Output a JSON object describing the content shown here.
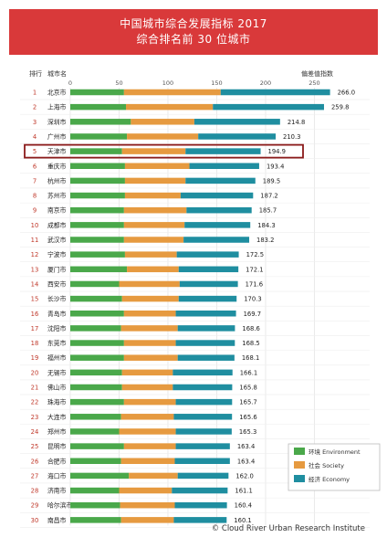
{
  "header": {
    "title": "中国城市综合发展指标 2017",
    "subtitle": "综合排名前 30 位城市"
  },
  "columns": {
    "rank": "排行",
    "city": "城市名",
    "score": "偏差值指数"
  },
  "copyright": "© Cloud River Urban Research Institute",
  "colors": {
    "environment": "#4aa84a",
    "society": "#e69a40",
    "economy": "#1f8ea0",
    "header_bg": "#d9393a",
    "highlight": "#8b1a1a"
  },
  "chart_data": {
    "type": "bar",
    "stacked": true,
    "orientation": "horizontal",
    "xlim": [
      0,
      266
    ],
    "xticks": [
      0,
      50,
      100,
      150,
      200,
      250
    ],
    "highlight_rank": 5,
    "legend_position": "bottom-right",
    "legend": [
      "环境 Environment",
      "社会 Society",
      "经济 Economy"
    ],
    "rows": [
      {
        "rank": 1,
        "city": "北京市",
        "total": 266.0,
        "env": 55,
        "soc": 99,
        "eco": 112
      },
      {
        "rank": 2,
        "city": "上海市",
        "total": 259.8,
        "env": 57,
        "soc": 89,
        "eco": 113.8
      },
      {
        "rank": 3,
        "city": "深圳市",
        "total": 214.8,
        "env": 62,
        "soc": 65,
        "eco": 87.8
      },
      {
        "rank": 4,
        "city": "广州市",
        "total": 210.3,
        "env": 58,
        "soc": 73,
        "eco": 79.3
      },
      {
        "rank": 5,
        "city": "天津市",
        "total": 194.9,
        "env": 53,
        "soc": 65,
        "eco": 76.9
      },
      {
        "rank": 6,
        "city": "重庆市",
        "total": 193.4,
        "env": 56,
        "soc": 66,
        "eco": 71.4
      },
      {
        "rank": 7,
        "city": "杭州市",
        "total": 189.5,
        "env": 56,
        "soc": 62,
        "eco": 71.5
      },
      {
        "rank": 8,
        "city": "苏州市",
        "total": 187.2,
        "env": 56,
        "soc": 57,
        "eco": 74.2
      },
      {
        "rank": 9,
        "city": "南京市",
        "total": 185.7,
        "env": 55,
        "soc": 64,
        "eco": 66.7
      },
      {
        "rank": 10,
        "city": "成都市",
        "total": 184.3,
        "env": 55,
        "soc": 62,
        "eco": 67.3
      },
      {
        "rank": 11,
        "city": "武汉市",
        "total": 183.2,
        "env": 55,
        "soc": 61,
        "eco": 67.2
      },
      {
        "rank": 12,
        "city": "宁波市",
        "total": 172.5,
        "env": 56,
        "soc": 53,
        "eco": 63.5
      },
      {
        "rank": 13,
        "city": "厦门市",
        "total": 172.1,
        "env": 58,
        "soc": 53,
        "eco": 61.1
      },
      {
        "rank": 14,
        "city": "西安市",
        "total": 171.6,
        "env": 50,
        "soc": 62,
        "eco": 59.6
      },
      {
        "rank": 15,
        "city": "长沙市",
        "total": 170.3,
        "env": 53,
        "soc": 58,
        "eco": 59.3
      },
      {
        "rank": 16,
        "city": "青岛市",
        "total": 169.7,
        "env": 55,
        "soc": 53,
        "eco": 61.7
      },
      {
        "rank": 17,
        "city": "沈阳市",
        "total": 168.6,
        "env": 52,
        "soc": 58,
        "eco": 58.6
      },
      {
        "rank": 18,
        "city": "东莞市",
        "total": 168.5,
        "env": 55,
        "soc": 53,
        "eco": 60.5
      },
      {
        "rank": 19,
        "city": "福州市",
        "total": 168.1,
        "env": 55,
        "soc": 55,
        "eco": 58.1
      },
      {
        "rank": 20,
        "city": "无锡市",
        "total": 166.1,
        "env": 53,
        "soc": 52,
        "eco": 61.1
      },
      {
        "rank": 21,
        "city": "佛山市",
        "total": 165.8,
        "env": 53,
        "soc": 52,
        "eco": 60.8
      },
      {
        "rank": 22,
        "city": "珠海市",
        "total": 165.7,
        "env": 55,
        "soc": 53,
        "eco": 57.7
      },
      {
        "rank": 23,
        "city": "大连市",
        "total": 165.6,
        "env": 52,
        "soc": 54,
        "eco": 59.6
      },
      {
        "rank": 24,
        "city": "郑州市",
        "total": 165.3,
        "env": 50,
        "soc": 58,
        "eco": 57.3
      },
      {
        "rank": 25,
        "city": "昆明市",
        "total": 163.4,
        "env": 55,
        "soc": 53,
        "eco": 55.4
      },
      {
        "rank": 26,
        "city": "合肥市",
        "total": 163.4,
        "env": 52,
        "soc": 55,
        "eco": 56.4
      },
      {
        "rank": 27,
        "city": "海口市",
        "total": 162.0,
        "env": 60,
        "soc": 50,
        "eco": 52.0
      },
      {
        "rank": 28,
        "city": "济南市",
        "total": 161.1,
        "env": 50,
        "soc": 54,
        "eco": 57.1
      },
      {
        "rank": 29,
        "city": "哈尔滨市",
        "total": 160.4,
        "env": 51,
        "soc": 56,
        "eco": 53.4
      },
      {
        "rank": 30,
        "city": "南昌市",
        "total": 160.1,
        "env": 52,
        "soc": 54,
        "eco": 54.1
      }
    ]
  }
}
